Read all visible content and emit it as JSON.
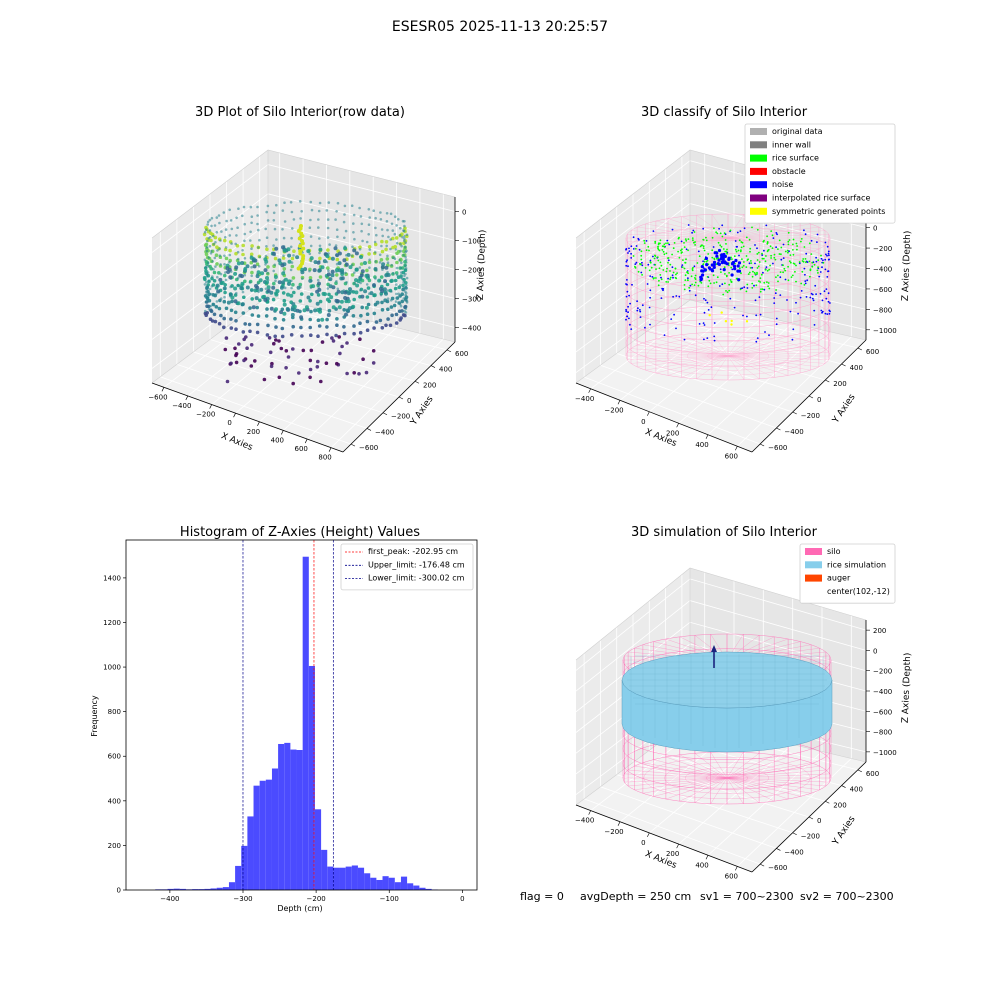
{
  "figure": {
    "suptitle": "ESESR05 2025-11-13 20:25:57",
    "footer": {
      "flag": "flag = 0",
      "avg_depth": "avgDepth = 250 cm",
      "sv1": "sv1 = 700~2300",
      "sv2": "sv2 = 700~2300"
    }
  },
  "colors": {
    "original_data": "#b0b0b0",
    "inner_wall": "#808080",
    "rice_surface": "#00ff00",
    "obstacle": "#ff0000",
    "noise": "#0000ff",
    "interpolated_rice_surface": "#800080",
    "symmetric_generated_points": "#ffff00",
    "silo": "#ff69b4",
    "rice_simulation": "#87ceeb",
    "auger": "#ff4500",
    "hist_bar": "#4b4bff",
    "first_peak_line": "#ff0000",
    "limit_line": "#00008b"
  },
  "chart_data": [
    {
      "type": "scatter3d",
      "title": "3D Plot of Silo Interior(row data)",
      "xlabel": "X Axies",
      "ylabel": "Y Axies",
      "zlabel": "Z Axies (Depth)",
      "x_ticks": [
        "−600",
        "−400",
        "−200",
        "0",
        "200",
        "400",
        "600",
        "800"
      ],
      "y_ticks": [
        "−600",
        "−400",
        "−200",
        "0",
        "200",
        "400",
        "600"
      ],
      "z_ticks": [
        "0",
        "−100",
        "−200",
        "−300",
        "−400"
      ],
      "xlim": [
        -600,
        800
      ],
      "ylim": [
        -600,
        600
      ],
      "zlim": [
        -450,
        0
      ],
      "colormap": "viridis",
      "grid": true
    },
    {
      "type": "scatter3d",
      "title": "3D classify of Silo Interior",
      "xlabel": "X Axies",
      "ylabel": "Y Axies",
      "zlabel": "Z Axies (Depth)",
      "x_ticks": [
        "−400",
        "−200",
        "0",
        "200",
        "400",
        "600"
      ],
      "y_ticks": [
        "−600",
        "−400",
        "−200",
        "0",
        "200",
        "400",
        "600"
      ],
      "z_ticks": [
        "200",
        "0",
        "−200",
        "−400",
        "−600",
        "−800",
        "−1000"
      ],
      "xlim": [
        -500,
        700
      ],
      "ylim": [
        -600,
        600
      ],
      "zlim": [
        -1000,
        200
      ],
      "legend_position": "top-right",
      "legend": [
        {
          "label": "original data",
          "color": "#b0b0b0"
        },
        {
          "label": "inner wall",
          "color": "#808080"
        },
        {
          "label": "rice surface",
          "color": "#00ff00"
        },
        {
          "label": "obstacle",
          "color": "#ff0000"
        },
        {
          "label": "noise",
          "color": "#0000ff"
        },
        {
          "label": "interpolated rice surface",
          "color": "#800080"
        },
        {
          "label": "symmetric generated points",
          "color": "#ffff00"
        }
      ],
      "grid": true
    },
    {
      "type": "bar",
      "title": "Histogram of Z-Axies (Height) Values",
      "xlabel": "Depth (cm)",
      "ylabel": "Frequency",
      "xlim": [
        -460,
        20
      ],
      "ylim": [
        0,
        1570
      ],
      "x_ticks": [
        -400,
        -300,
        -200,
        -100,
        0
      ],
      "y_ticks": [
        0,
        200,
        400,
        600,
        800,
        1000,
        1200,
        1400
      ],
      "bin_width": 8.4,
      "bin_start": -420,
      "values": [
        3,
        3,
        5,
        6,
        5,
        3,
        4,
        4,
        5,
        7,
        10,
        13,
        35,
        108,
        198,
        330,
        468,
        490,
        495,
        545,
        655,
        660,
        630,
        628,
        1495,
        1005,
        362,
        180,
        105,
        100,
        100,
        105,
        110,
        100,
        75,
        55,
        45,
        62,
        55,
        35,
        60,
        30,
        20,
        10,
        5,
        2,
        0
      ],
      "legend_position": "top-right",
      "legend": [
        {
          "label": "first_peak: -202.95 cm",
          "color": "#ff0000"
        },
        {
          "label": "Upper_limit: -176.48 cm",
          "color": "#00008b"
        },
        {
          "label": "Lower_limit: -300.02 cm",
          "color": "#00008b"
        }
      ],
      "vlines": [
        {
          "x": -202.95,
          "color": "#ff0000"
        },
        {
          "x": -176.48,
          "color": "#00008b"
        },
        {
          "x": -300.02,
          "color": "#00008b"
        }
      ],
      "grid": false
    },
    {
      "type": "surface3d",
      "title": "3D simulation of Silo Interior",
      "xlabel": "X Axies",
      "ylabel": "Y Axies",
      "zlabel": "Z Axies (Depth)",
      "x_ticks": [
        "−400",
        "−200",
        "0",
        "200",
        "400",
        "600"
      ],
      "y_ticks": [
        "−600",
        "−400",
        "−200",
        "0",
        "200",
        "400",
        "600"
      ],
      "z_ticks": [
        "200",
        "0",
        "−200",
        "−400",
        "−600",
        "−800",
        "−1000"
      ],
      "xlim": [
        -500,
        700
      ],
      "ylim": [
        -600,
        600
      ],
      "zlim": [
        -1000,
        200
      ],
      "legend_position": "top-right",
      "legend": [
        {
          "label": "silo",
          "color": "#ff69b4"
        },
        {
          "label": "rice simulation",
          "color": "#87ceeb"
        },
        {
          "label": "auger",
          "color": "#ff4500"
        },
        {
          "label": "center(102,-12)",
          "color": ""
        }
      ],
      "center": {
        "x": 102,
        "y": -12
      },
      "grid": true
    }
  ]
}
